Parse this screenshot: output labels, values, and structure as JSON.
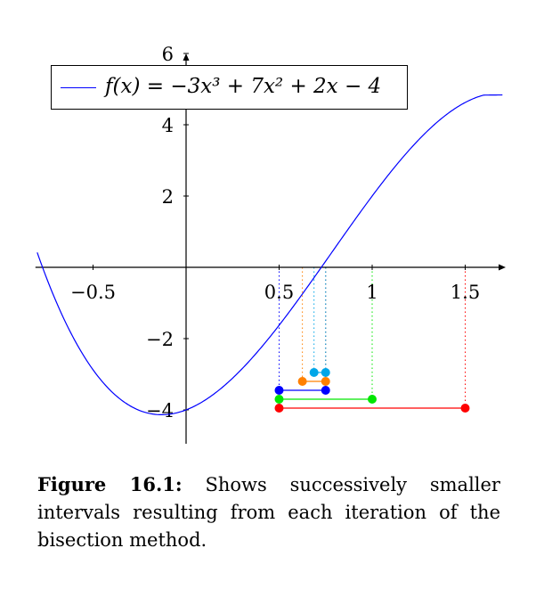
{
  "chart_data": {
    "type": "line",
    "legend": "f(x) = −3x³ + 7x² + 2x − 4",
    "legend_position": "top-left",
    "function": {
      "coefficients": [
        -3,
        7,
        2,
        -4
      ],
      "x_range": [
        -0.8,
        1.7
      ]
    },
    "x_ticks": [
      {
        "value": -0.5,
        "label": "−0.5"
      },
      {
        "value": 0.5,
        "label": "0.5"
      },
      {
        "value": 1,
        "label": "1"
      },
      {
        "value": 1.5,
        "label": "1.5"
      }
    ],
    "y_ticks": [
      {
        "value": -4,
        "label": "−4"
      },
      {
        "value": -2,
        "label": "−2"
      },
      {
        "value": 2,
        "label": "2"
      },
      {
        "value": 4,
        "label": "4"
      },
      {
        "value": 6,
        "label": "6"
      }
    ],
    "xlim": [
      -0.8,
      1.7
    ],
    "ylim": [
      -4.7,
      6
    ],
    "intervals": [
      {
        "a": 0.5,
        "b": 1.5,
        "y": -3.95,
        "color": "#ff0000"
      },
      {
        "a": 0.5,
        "b": 1.0,
        "y": -3.7,
        "color": "#00e600"
      },
      {
        "a": 0.5,
        "b": 0.75,
        "y": -3.45,
        "color": "#0000ff"
      },
      {
        "a": 0.625,
        "b": 0.75,
        "y": -3.2,
        "color": "#ff8000"
      },
      {
        "a": 0.6875,
        "b": 0.75,
        "y": -2.95,
        "color": "#00a6e8"
      }
    ],
    "line_color": "#0000ff"
  },
  "caption": {
    "label": "Figure 16.1:",
    "text": "Shows successively smaller intervals resulting from each iteration of the bisection method."
  }
}
